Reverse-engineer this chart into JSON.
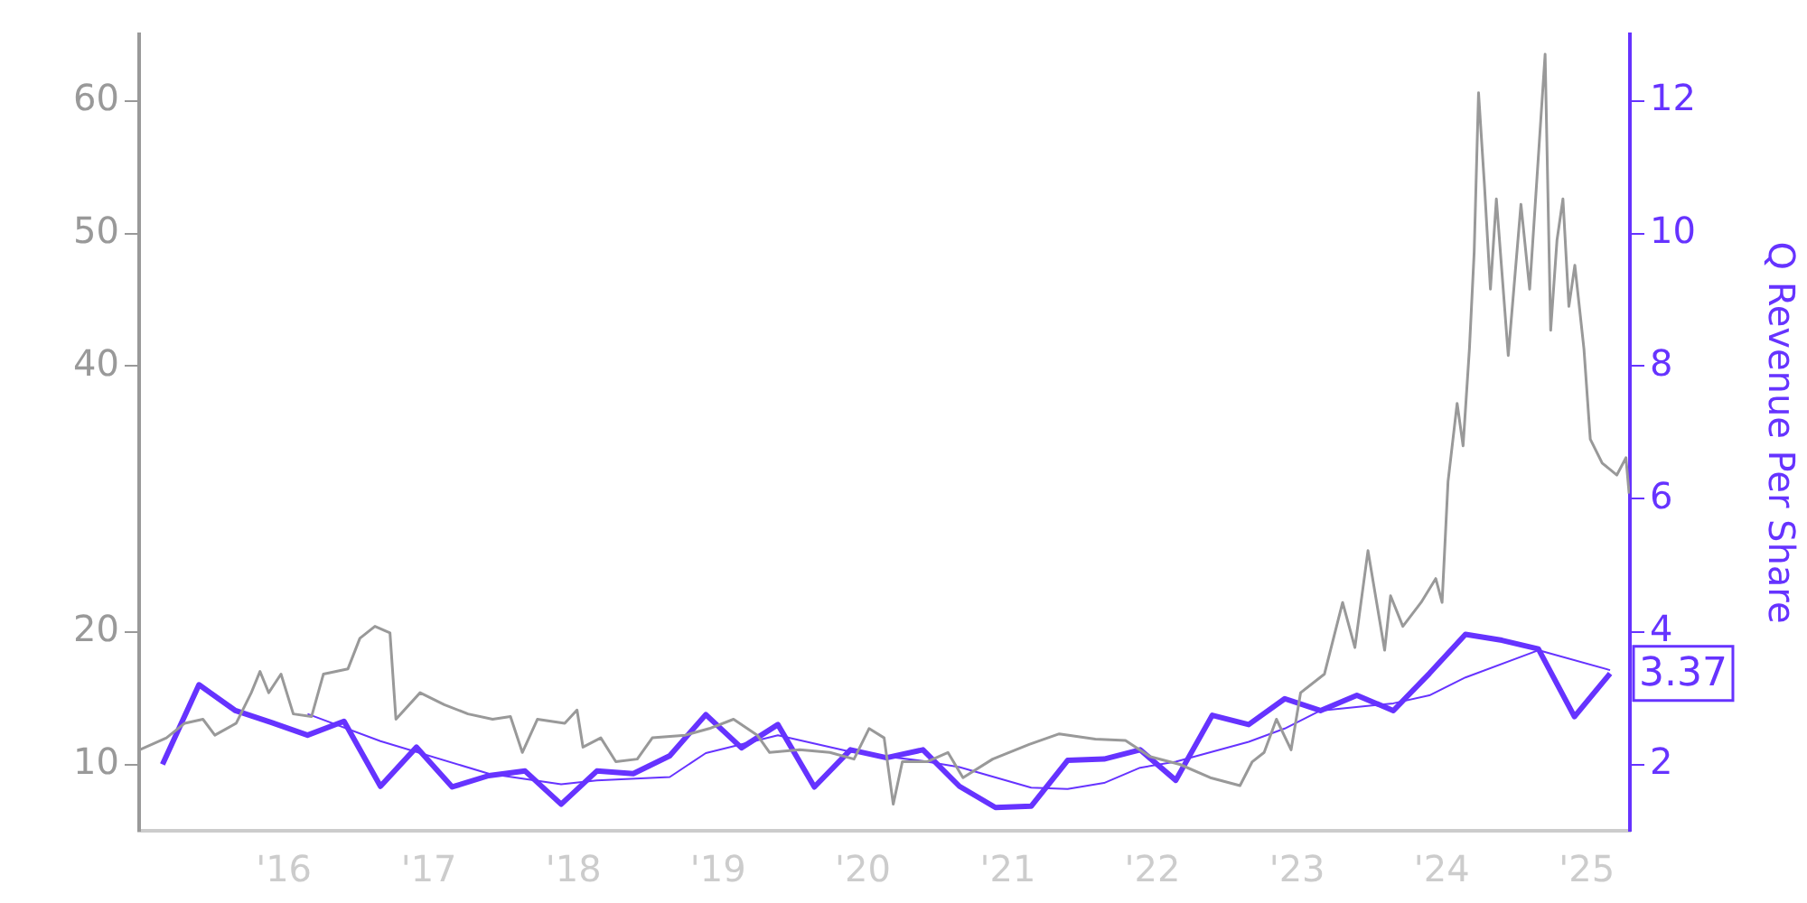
{
  "chart_data": {
    "type": "line",
    "y2label": "Q Revenue Per Share",
    "marker": "none",
    "grid": false,
    "legend": false,
    "xlim": [
      "2015-01-01",
      "2025-04-20"
    ],
    "xticks": [
      {
        "value": "2015-01-01",
        "label": null
      },
      {
        "value": "2016-01-01",
        "label": "'16"
      },
      {
        "value": "2017-01-01",
        "label": "'17"
      },
      {
        "value": "2018-01-01",
        "label": "'18"
      },
      {
        "value": "2019-01-01",
        "label": "'19"
      },
      {
        "value": "2020-01-01",
        "label": "'20"
      },
      {
        "value": "2021-01-01",
        "label": "'21"
      },
      {
        "value": "2022-01-01",
        "label": "'22"
      },
      {
        "value": "2023-01-01",
        "label": "'23"
      },
      {
        "value": "2024-01-01",
        "label": "'24"
      },
      {
        "value": "2025-01-01",
        "label": "'25"
      }
    ],
    "ylim": [
      5,
      65
    ],
    "yticks": [
      10,
      20,
      40,
      50,
      60
    ],
    "y2lim": [
      1,
      13
    ],
    "y2ticks": [
      2,
      4,
      6,
      8,
      10,
      12
    ],
    "series": [
      {
        "color": "#999999",
        "x": [
          "2015-01-02",
          "2015-03-11",
          "2015-04-26",
          "2015-06-11",
          "2015-07-11",
          "2015-09-03",
          "2015-10-11",
          "2015-11-02",
          "2015-11-24",
          "2015-12-25",
          "2016-01-25",
          "2016-03-11",
          "2016-04-10",
          "2016-06-11",
          "2016-07-11",
          "2016-08-18",
          "2016-09-25",
          "2016-10-10",
          "2016-12-10",
          "2017-02-09",
          "2017-04-10",
          "2017-06-11",
          "2017-07-26",
          "2017-08-25",
          "2017-10-02",
          "2017-12-10",
          "2018-01-10",
          "2018-01-25",
          "2018-03-11",
          "2018-04-18",
          "2018-06-11",
          "2018-07-19",
          "2018-10-10",
          "2018-12-10",
          "2019-02-09",
          "2019-04-10",
          "2019-05-11",
          "2019-07-26",
          "2019-10-10",
          "2019-12-10",
          "2020-01-17",
          "2020-02-24",
          "2020-03-18",
          "2020-04-10",
          "2020-06-11",
          "2020-08-03",
          "2020-09-10",
          "2020-11-24",
          "2021-02-24",
          "2021-05-11",
          "2021-08-10",
          "2021-10-25",
          "2021-12-25",
          "2022-03-11",
          "2022-05-27",
          "2022-08-10",
          "2022-09-10",
          "2022-10-10",
          "2022-11-10",
          "2022-12-17",
          "2023-01-10",
          "2023-03-11",
          "2023-04-03",
          "2023-04-26",
          "2023-05-27",
          "2023-06-29",
          "2023-08-10",
          "2023-08-25",
          "2023-09-25",
          "2023-11-10",
          "2023-12-17",
          "2024-01-02",
          "2024-01-17",
          "2024-02-09",
          "2024-02-24",
          "2024-03-11",
          "2024-03-23",
          "2024-04-03",
          "2024-04-18",
          "2024-05-03",
          "2024-05-18",
          "2024-06-17",
          "2024-07-19",
          "2024-08-10",
          "2024-09-03",
          "2024-09-18",
          "2024-10-02",
          "2024-10-18",
          "2024-11-02",
          "2024-11-17",
          "2024-12-02",
          "2024-12-25",
          "2025-01-10",
          "2025-02-09",
          "2025-03-18",
          "2025-04-10",
          "2025-04-18"
        ],
        "values": [
          11.1,
          12.0,
          13.1,
          13.4,
          12.2,
          13.1,
          15.4,
          17.0,
          15.4,
          16.8,
          13.8,
          13.6,
          16.8,
          17.2,
          19.5,
          20.4,
          19.9,
          13.4,
          15.4,
          14.5,
          13.8,
          13.4,
          13.6,
          10.9,
          13.4,
          13.1,
          14.1,
          11.3,
          12.0,
          10.2,
          10.4,
          12.0,
          12.2,
          12.7,
          13.4,
          12.2,
          10.9,
          11.1,
          10.9,
          10.4,
          12.7,
          12.0,
          7.0,
          10.2,
          10.2,
          10.9,
          9.0,
          10.4,
          11.5,
          12.3,
          11.9,
          11.8,
          10.6,
          10.0,
          9.0,
          8.4,
          10.2,
          10.9,
          13.4,
          11.1,
          15.4,
          16.8,
          19.5,
          22.2,
          18.8,
          26.1,
          18.6,
          22.7,
          20.4,
          22.2,
          24.0,
          22.2,
          31.3,
          37.2,
          34.0,
          41.3,
          48.6,
          60.6,
          53.6,
          45.8,
          52.6,
          40.8,
          52.2,
          45.8,
          56.7,
          63.5,
          42.7,
          49.5,
          52.6,
          44.5,
          47.6,
          41.3,
          34.5,
          32.7,
          31.8,
          33.1,
          30.4
        ]
      },
      {
        "color": "#6633ff",
        "axis": "y2",
        "x": [
          "2015-03-01",
          "2015-06-01",
          "2015-09-01",
          "2015-12-01",
          "2016-03-01",
          "2016-06-01",
          "2016-09-01",
          "2016-12-01",
          "2017-03-01",
          "2017-06-01",
          "2017-09-01",
          "2017-12-01",
          "2018-03-01",
          "2018-06-01",
          "2018-09-01",
          "2018-12-01",
          "2019-03-01",
          "2019-06-01",
          "2019-09-01",
          "2019-12-01",
          "2020-03-01",
          "2020-06-01",
          "2020-09-01",
          "2020-12-01",
          "2021-03-01",
          "2021-06-01",
          "2021-09-01",
          "2021-12-01",
          "2022-03-01",
          "2022-06-01",
          "2022-09-01",
          "2022-12-01",
          "2023-03-01",
          "2023-06-01",
          "2023-09-01",
          "2023-12-01",
          "2024-03-01",
          "2024-06-01",
          "2024-09-01",
          "2024-12-01",
          "2025-03-01"
        ],
        "values": [
          2.0,
          3.2,
          2.81,
          2.63,
          2.44,
          2.65,
          1.67,
          2.26,
          1.66,
          1.83,
          1.9,
          1.4,
          1.9,
          1.86,
          2.13,
          2.75,
          2.25,
          2.6,
          1.66,
          2.22,
          2.1,
          2.22,
          1.67,
          1.35,
          1.37,
          2.06,
          2.08,
          2.22,
          1.76,
          2.74,
          2.6,
          2.99,
          2.81,
          3.04,
          2.81,
          3.37,
          3.96,
          3.87,
          3.74,
          2.72,
          3.37
        ],
        "value_labels": [
          null,
          null,
          null,
          null,
          null,
          null,
          null,
          null,
          null,
          null,
          null,
          null,
          null,
          null,
          null,
          null,
          null,
          null,
          null,
          null,
          null,
          null,
          null,
          null,
          null,
          null,
          null,
          null,
          null,
          null,
          null,
          null,
          null,
          null,
          null,
          null,
          null,
          null,
          null,
          null,
          "3.37"
        ]
      },
      {
        "color": "#6633ff",
        "axis": "y2",
        "x": [
          "2016-03-01",
          "2016-09-01",
          "2017-06-01",
          "2017-12-01",
          "2018-03-01",
          "2018-09-01",
          "2018-12-01",
          "2019-06-01",
          "2019-12-01",
          "2020-06-01",
          "2020-09-01",
          "2021-03-01",
          "2021-06-01",
          "2021-09-01",
          "2021-12-01",
          "2022-03-01",
          "2022-09-01",
          "2022-12-01",
          "2023-03-01",
          "2023-09-01",
          "2023-12-01",
          "2024-03-01",
          "2024-09-01",
          "2025-03-01"
        ],
        "values": [
          2.76,
          2.35,
          1.86,
          1.7,
          1.76,
          1.81,
          2.17,
          2.44,
          2.19,
          2.05,
          1.96,
          1.65,
          1.63,
          1.72,
          1.95,
          2.04,
          2.34,
          2.54,
          2.81,
          2.92,
          3.04,
          3.31,
          3.72,
          3.42
        ]
      }
    ]
  }
}
